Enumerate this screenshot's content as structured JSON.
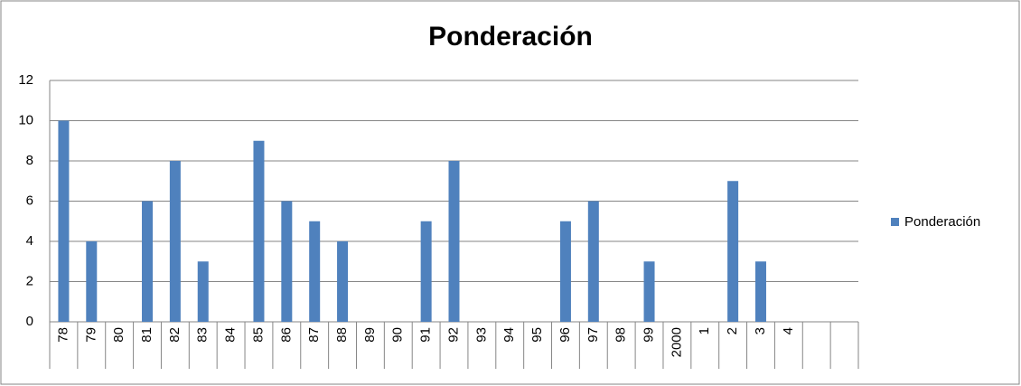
{
  "chart_data": {
    "type": "bar",
    "title": "Ponderación",
    "categories": [
      "78",
      "79",
      "80",
      "81",
      "82",
      "83",
      "84",
      "85",
      "86",
      "87",
      "88",
      "89",
      "90",
      "91",
      "92",
      "93",
      "94",
      "95",
      "96",
      "97",
      "98",
      "99",
      "2000",
      "1",
      "2",
      "3",
      "4",
      null,
      null
    ],
    "series": [
      {
        "name": "Ponderación",
        "color": "#4f81bd",
        "values": [
          10,
          4,
          null,
          6,
          8,
          3,
          null,
          9,
          6,
          5,
          4,
          null,
          null,
          5,
          8,
          null,
          null,
          null,
          5,
          6,
          null,
          3,
          null,
          null,
          7,
          3,
          null,
          null,
          null
        ]
      }
    ],
    "ylim": [
      0,
      12
    ],
    "yticks": [
      0,
      2,
      4,
      6,
      8,
      10,
      12
    ],
    "grid": true,
    "legend": "right"
  }
}
